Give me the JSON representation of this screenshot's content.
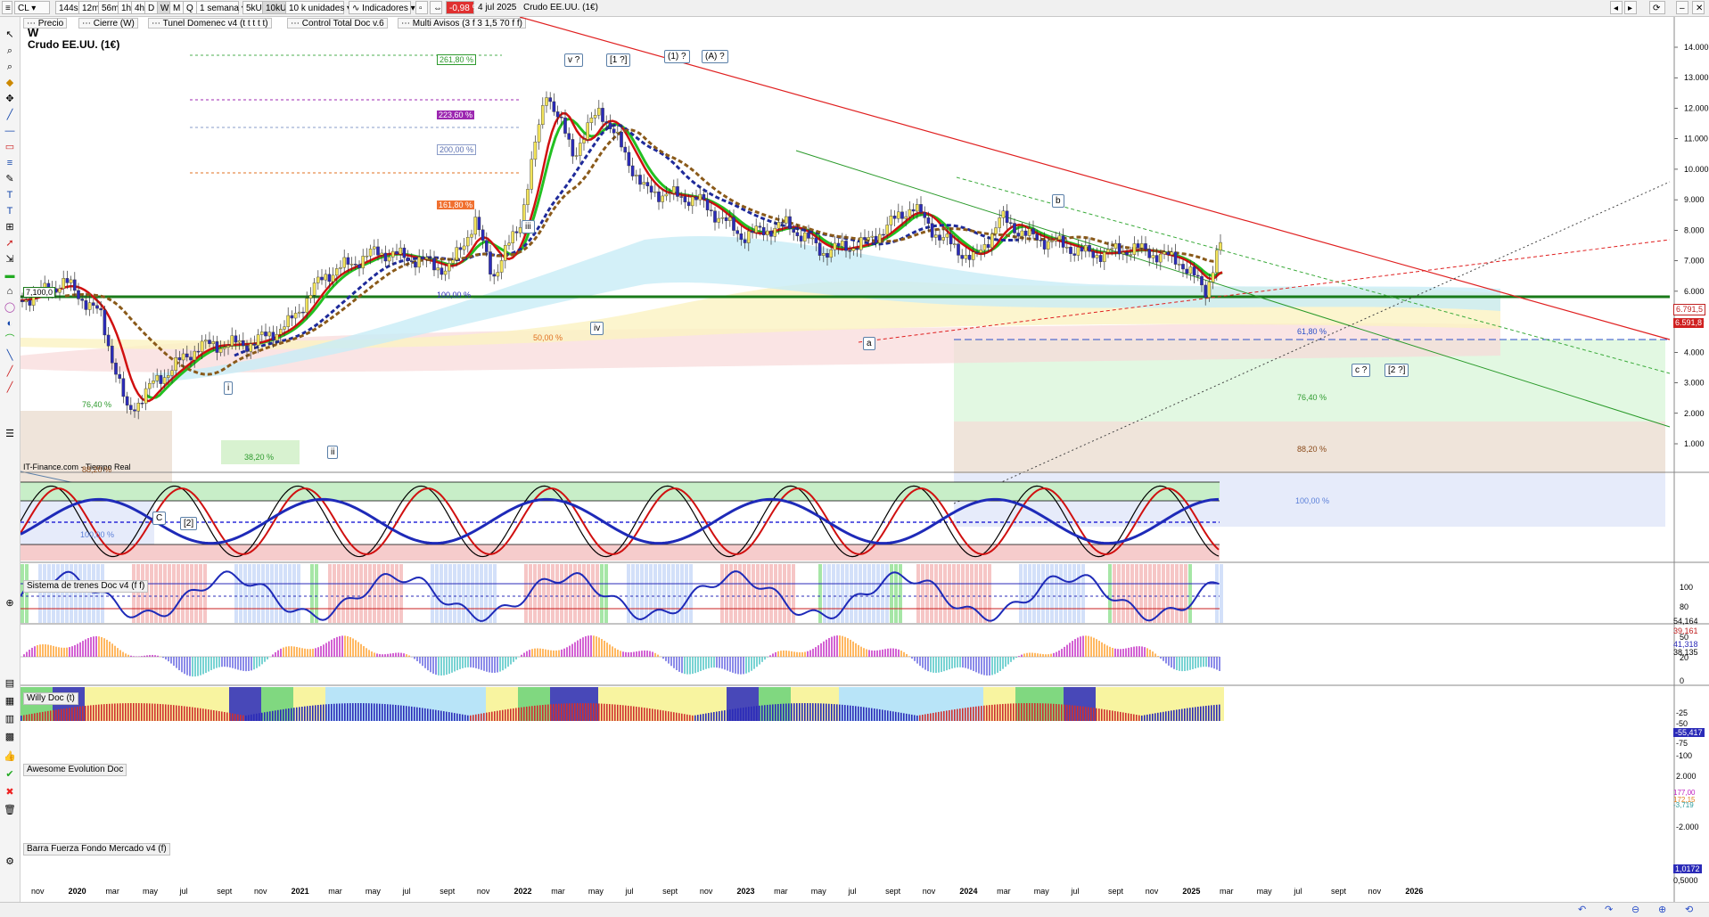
{
  "toolbar": {
    "symbol": "CL",
    "intervals": [
      "144s",
      "12m",
      "56m",
      "1h",
      "4h",
      "D",
      "W",
      "M",
      "Q"
    ],
    "selected_interval": "W",
    "period": "1 semana",
    "units": [
      "5kU",
      "10kU"
    ],
    "selected_units": "10kU",
    "units_dropdown": "10 k unidades",
    "indicators_label": "Indicadores",
    "change": "-0,98 %",
    "date": "4 jul 2025",
    "instrument": "Crudo EE.UU. (1€)"
  },
  "legend": {
    "items": [
      "Precio",
      "Cierre (W)",
      "Tunel Domenec v4 (t t t t t)",
      "Control Total Doc v.6",
      "Multi Avisos (3 f 3 1,5 70 f f)"
    ]
  },
  "chart": {
    "timeframe_label": "W",
    "title": "Crudo EE.UU. (1€)",
    "source": "IT-Finance.com - Tiempo Real",
    "level_label": "7,100,0",
    "price_ticks": [
      "14.000",
      "13.000",
      "12.000",
      "11.000",
      "10.000",
      "9.000",
      "8.000",
      "7.000",
      "6.000",
      "5.000",
      "4.000",
      "3.000",
      "2.000",
      "1.000"
    ],
    "price_tags": [
      "6.791,5",
      "6.591,8"
    ],
    "fib_labels": [
      "261,80 %",
      "223,60 %",
      "200,00 %",
      "161,80 %",
      "100,00 %",
      "50,00 %",
      "38,20 %",
      "76,40 %",
      "88,20 %",
      "100,00 %",
      "61,80 %",
      "76,40 %",
      "88,20 %",
      "100,00 %"
    ],
    "waves": [
      "v ?",
      "[1 ?]",
      "(1) ?",
      "(A) ?",
      "iii",
      "iv",
      "i",
      "ii",
      "C",
      "[2]",
      "b",
      "a",
      "c ?",
      "[2 ?]"
    ],
    "x_ticks": [
      "nov",
      "2020",
      "mar",
      "may",
      "jul",
      "sept",
      "nov",
      "2021",
      "mar",
      "may",
      "jul",
      "sept",
      "nov",
      "2022",
      "mar",
      "may",
      "jul",
      "sept",
      "nov",
      "2023",
      "mar",
      "may",
      "jul",
      "sept",
      "nov",
      "2024",
      "mar",
      "may",
      "jul",
      "sept",
      "nov",
      "2025",
      "mar",
      "may",
      "jul",
      "sept",
      "nov",
      "2026"
    ]
  },
  "panes": {
    "trenes": {
      "title": "Sistema de trenes Doc v4 (f f)",
      "ticks": [
        "100",
        "80",
        "50",
        "20",
        "0"
      ],
      "values": [
        "54,164",
        "39,161",
        "41,318",
        "38,135"
      ]
    },
    "willy": {
      "title": "Willy Doc (t)",
      "ticks": [
        "-25",
        "-50",
        "-75",
        "-100"
      ],
      "values": [
        "-55,417"
      ]
    },
    "awesome": {
      "title": "Awesome Evolution Doc",
      "ticks": [
        "2.000",
        "-2.000"
      ],
      "values": [
        "177,00",
        "172,15",
        "-3,719"
      ]
    },
    "barra": {
      "title": "Barra Fuerza Fondo Mercado v4 (f)",
      "ticks": [
        "1,0172",
        "0,5000"
      ]
    }
  },
  "colors": {
    "up_candle": "#f2e35a",
    "down_candle": "#2b2bb8",
    "resistance": "#e02020",
    "support": "#1a7a1a"
  }
}
